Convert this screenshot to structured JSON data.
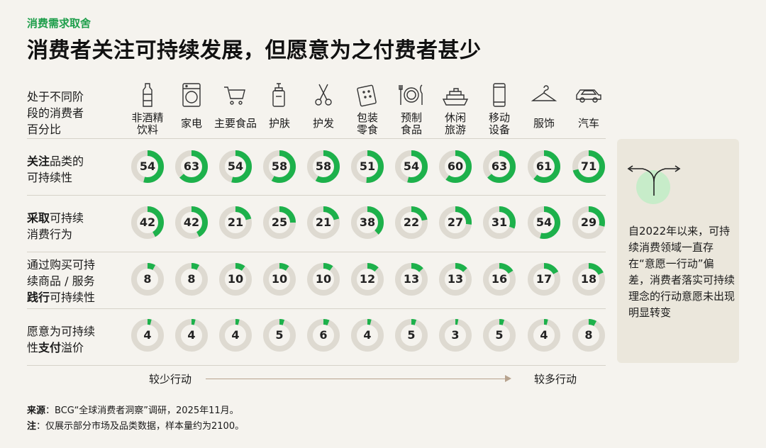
{
  "header": {
    "kicker": "消费需求取舍",
    "title": "消费者关注可持续发展，但愿意为之付费者甚少"
  },
  "row_header_title": [
    "处于不同阶",
    "段的消费者",
    "百分比"
  ],
  "rows": [
    {
      "line1_bold": "关注",
      "line1_rest": "品类的",
      "line2": "可持续性"
    },
    {
      "line1_bold": "采取",
      "line1_rest": "可持续",
      "line2": "消费行为"
    },
    {
      "line1": "通过购买可持",
      "line2": "续商品 / 服务",
      "line3_bold": "践行",
      "line3_rest": "可持续性"
    },
    {
      "line1": "愿意为可持续",
      "line2_pre": "性",
      "line2_bold": "支付",
      "line2_rest": "溢价"
    }
  ],
  "chart_data": {
    "type": "table",
    "unit": "%",
    "categories": [
      {
        "label1": "非酒精",
        "label2": "饮料",
        "icon": "bottle-icon"
      },
      {
        "label1": "家电",
        "label2": "",
        "icon": "washing-machine-icon"
      },
      {
        "label1": "主要食品",
        "label2": "",
        "icon": "shopping-cart-icon"
      },
      {
        "label1": "护肤",
        "label2": "",
        "icon": "pump-bottle-icon"
      },
      {
        "label1": "护发",
        "label2": "",
        "icon": "scissors-icon"
      },
      {
        "label1": "包装",
        "label2": "零食",
        "icon": "cracker-icon"
      },
      {
        "label1": "预制",
        "label2": "食品",
        "icon": "plate-cutlery-icon"
      },
      {
        "label1": "休闲",
        "label2": "旅游",
        "icon": "cruise-ship-icon"
      },
      {
        "label1": "移动",
        "label2": "设备",
        "icon": "phone-icon"
      },
      {
        "label1": "服饰",
        "label2": "",
        "icon": "hanger-icon"
      },
      {
        "label1": "汽车",
        "label2": "",
        "icon": "car-icon"
      }
    ],
    "series": [
      {
        "values": [
          54,
          63,
          54,
          58,
          58,
          51,
          54,
          60,
          63,
          61,
          71
        ]
      },
      {
        "values": [
          42,
          42,
          21,
          25,
          21,
          38,
          22,
          27,
          31,
          54,
          29
        ]
      },
      {
        "values": [
          8,
          8,
          10,
          10,
          10,
          12,
          13,
          13,
          16,
          17,
          18
        ]
      },
      {
        "values": [
          4,
          4,
          4,
          5,
          6,
          4,
          5,
          3,
          5,
          4,
          8
        ]
      }
    ],
    "ring_color": "#1db14b",
    "track_color": "#dedad1",
    "axis": {
      "left_label": "较少行动",
      "right_label": "较多行动"
    }
  },
  "side_panel": {
    "icon": "diverging-arrows-icon",
    "text": "自2022年以来，可持续消费领域一直存在“意愿一行动”偏差，消费者落实可持续理念的行动意愿未出现明显转变"
  },
  "footnotes": {
    "source_label": "来源",
    "source_text": "：BCG“全球消费者洞察”调研，2025年11月。",
    "note_label": "注",
    "note_text": "：仅展示部分市场及品类数据，样本量约为2100。"
  },
  "colors": {
    "accent": "#1d9e4a",
    "background": "#f5f3ee"
  }
}
